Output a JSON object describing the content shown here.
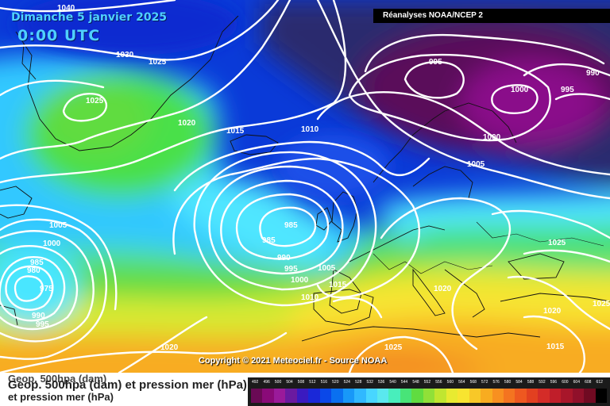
{
  "header": {
    "date_title": "Dimanche 5 janvier 2025",
    "time_title": "0:00 UTC",
    "source_banner": "Réanalyses NOAA/NCEP 2"
  },
  "footer": {
    "copyright": "Copyright © 2021 Meteociel.fr - Source NOAA",
    "legend_title_ghost": "Geop. 500hpa (dam)",
    "legend_title_line1": "Geop. 500hpa (dam) et pression mer (hPa)",
    "legend_title_line2": "et pression mer (hPa)"
  },
  "map": {
    "field": "500 hPa geopotential (dam) and mean sea level pressure (hPa)",
    "colors": {
      "deep_violet": "#5a0a5a",
      "dark_navy": "#2a2a6e",
      "blue": "#0a3ad8",
      "light_blue": "#28a0ff",
      "cyan": "#50e6ff",
      "green": "#48e048",
      "yellow": "#f8ec30",
      "orange": "#f8a418",
      "red_orange": "#f0641a",
      "isobar": "#ffffff",
      "coastline": "#111111"
    },
    "isobar_labels": [
      "1040",
      "1030",
      "1025",
      "1025",
      "1020",
      "1015",
      "1010",
      "995",
      "990",
      "1000",
      "995",
      "1000",
      "1005",
      "985",
      "985",
      "990",
      "995",
      "1000",
      "1005",
      "1015",
      "1010",
      "1025",
      "1020",
      "1020",
      "1025",
      "1015",
      "1005",
      "1000",
      "985",
      "980",
      "975",
      "990",
      "995",
      "1020",
      "1025"
    ]
  },
  "legend": {
    "scale_labels": [
      "492",
      "496",
      "500",
      "504",
      "508",
      "512",
      "516",
      "520",
      "524",
      "528",
      "532",
      "536",
      "540",
      "544",
      "548",
      "552",
      "556",
      "560",
      "564",
      "568",
      "572",
      "576",
      "580",
      "584",
      "588",
      "592",
      "596",
      "600",
      "604",
      "608",
      "612"
    ],
    "scale_colors": [
      "#6a0a55",
      "#8a0a78",
      "#9a1a9a",
      "#6a1aa0",
      "#3a1ac0",
      "#1a28d8",
      "#0a48e8",
      "#0a70f0",
      "#1898f8",
      "#30b8ff",
      "#48d6ff",
      "#5ae8ee",
      "#48eebc",
      "#48e478",
      "#60dc40",
      "#90e038",
      "#c0e630",
      "#e8ea30",
      "#f8e430",
      "#f8c828",
      "#f8ac20",
      "#f89020",
      "#f47420",
      "#ee5820",
      "#e24020",
      "#d42c28",
      "#c01e2a",
      "#a8162a",
      "#90102a",
      "#700a22",
      "#000000"
    ]
  }
}
